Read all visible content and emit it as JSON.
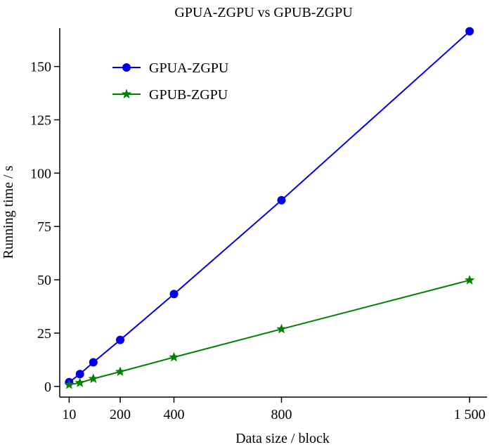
{
  "chart_data": {
    "type": "line",
    "title": "GPUA-ZGPU vs GPUB-ZGPU",
    "xlabel": "Data size / block",
    "ylabel": "Running time / s",
    "x": [
      10,
      50,
      100,
      200,
      400,
      800,
      1500
    ],
    "x_ticks": [
      10,
      200,
      400,
      800,
      1500
    ],
    "x_tick_labels": [
      "10",
      "200",
      "400",
      "800",
      "1 500"
    ],
    "xlim": [
      -25,
      1565
    ],
    "y_ticks": [
      0,
      25,
      50,
      75,
      100,
      125,
      150
    ],
    "y_tick_labels": [
      "0",
      "25",
      "50",
      "75",
      "100",
      "125",
      "150"
    ],
    "ylim": [
      -5,
      168
    ],
    "grid": false,
    "legend_position": "top-left",
    "series": [
      {
        "name": "GPUA-ZGPU",
        "color": "#0000ee",
        "marker": "circle",
        "values": [
          2,
          5.8,
          11.3,
          21.8,
          43.3,
          87.3,
          166.5
        ]
      },
      {
        "name": "GPUB-ZGPU",
        "color": "#008000",
        "marker": "star",
        "values": [
          0.8,
          1.7,
          3.6,
          6.9,
          13.7,
          26.9,
          49.8
        ]
      }
    ]
  }
}
